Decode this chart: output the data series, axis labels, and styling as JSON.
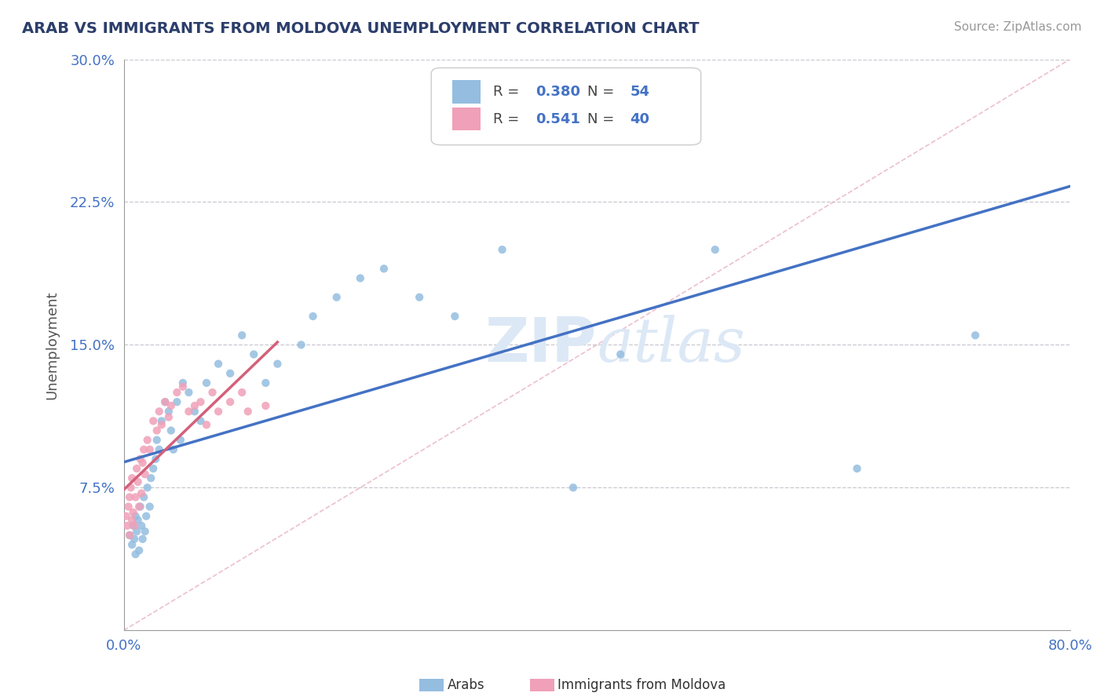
{
  "title": "ARAB VS IMMIGRANTS FROM MOLDOVA UNEMPLOYMENT CORRELATION CHART",
  "source_text": "Source: ZipAtlas.com",
  "ylabel": "Unemployment",
  "xlim": [
    0.0,
    0.8
  ],
  "ylim": [
    0.0,
    0.3
  ],
  "xticks": [
    0.0,
    0.1,
    0.2,
    0.3,
    0.4,
    0.5,
    0.6,
    0.7,
    0.8
  ],
  "xticklabels": [
    "0.0%",
    "",
    "",
    "",
    "",
    "",
    "",
    "",
    "80.0%"
  ],
  "yticks": [
    0.075,
    0.15,
    0.225,
    0.3
  ],
  "yticklabels": [
    "7.5%",
    "15.0%",
    "22.5%",
    "30.0%"
  ],
  "arab_color": "#94bde0",
  "moldova_color": "#f0a0b8",
  "arab_line_color": "#4472c4",
  "moldova_line_color": "#d4607a",
  "arab_R": 0.38,
  "arab_N": 54,
  "moldova_R": 0.541,
  "moldova_N": 40,
  "background_color": "#ffffff",
  "grid_color": "#c8c8d0",
  "title_color": "#2c3e6b",
  "axis_label_color": "#555555",
  "tick_color": "#4472c4",
  "watermark_color": "#dce8f5",
  "legend_R_color": "#4472c4",
  "arab_x": [
    0.005,
    0.007,
    0.008,
    0.009,
    0.01,
    0.01,
    0.011,
    0.012,
    0.013,
    0.014,
    0.015,
    0.016,
    0.017,
    0.018,
    0.019,
    0.02,
    0.022,
    0.023,
    0.025,
    0.027,
    0.028,
    0.03,
    0.032,
    0.035,
    0.038,
    0.04,
    0.042,
    0.045,
    0.048,
    0.05,
    0.055,
    0.06,
    0.065,
    0.07,
    0.08,
    0.09,
    0.1,
    0.11,
    0.12,
    0.13,
    0.15,
    0.16,
    0.18,
    0.2,
    0.22,
    0.25,
    0.28,
    0.32,
    0.38,
    0.42,
    0.45,
    0.5,
    0.62,
    0.72
  ],
  "arab_y": [
    0.05,
    0.045,
    0.055,
    0.048,
    0.06,
    0.04,
    0.052,
    0.058,
    0.042,
    0.065,
    0.055,
    0.048,
    0.07,
    0.052,
    0.06,
    0.075,
    0.065,
    0.08,
    0.085,
    0.09,
    0.1,
    0.095,
    0.11,
    0.12,
    0.115,
    0.105,
    0.095,
    0.12,
    0.1,
    0.13,
    0.125,
    0.115,
    0.11,
    0.13,
    0.14,
    0.135,
    0.155,
    0.145,
    0.13,
    0.14,
    0.15,
    0.165,
    0.175,
    0.185,
    0.19,
    0.175,
    0.165,
    0.2,
    0.075,
    0.145,
    0.26,
    0.2,
    0.085,
    0.155
  ],
  "moldova_x": [
    0.002,
    0.003,
    0.004,
    0.005,
    0.005,
    0.006,
    0.007,
    0.007,
    0.008,
    0.009,
    0.01,
    0.011,
    0.012,
    0.013,
    0.014,
    0.015,
    0.016,
    0.017,
    0.018,
    0.02,
    0.022,
    0.025,
    0.028,
    0.03,
    0.032,
    0.035,
    0.038,
    0.04,
    0.045,
    0.05,
    0.055,
    0.06,
    0.065,
    0.07,
    0.075,
    0.08,
    0.09,
    0.1,
    0.105,
    0.12
  ],
  "moldova_y": [
    0.06,
    0.055,
    0.065,
    0.07,
    0.05,
    0.075,
    0.058,
    0.08,
    0.062,
    0.055,
    0.07,
    0.085,
    0.078,
    0.065,
    0.09,
    0.072,
    0.088,
    0.095,
    0.082,
    0.1,
    0.095,
    0.11,
    0.105,
    0.115,
    0.108,
    0.12,
    0.112,
    0.118,
    0.125,
    0.128,
    0.115,
    0.118,
    0.12,
    0.108,
    0.125,
    0.115,
    0.12,
    0.125,
    0.115,
    0.118
  ],
  "figsize": [
    14.06,
    8.92
  ],
  "dpi": 100
}
